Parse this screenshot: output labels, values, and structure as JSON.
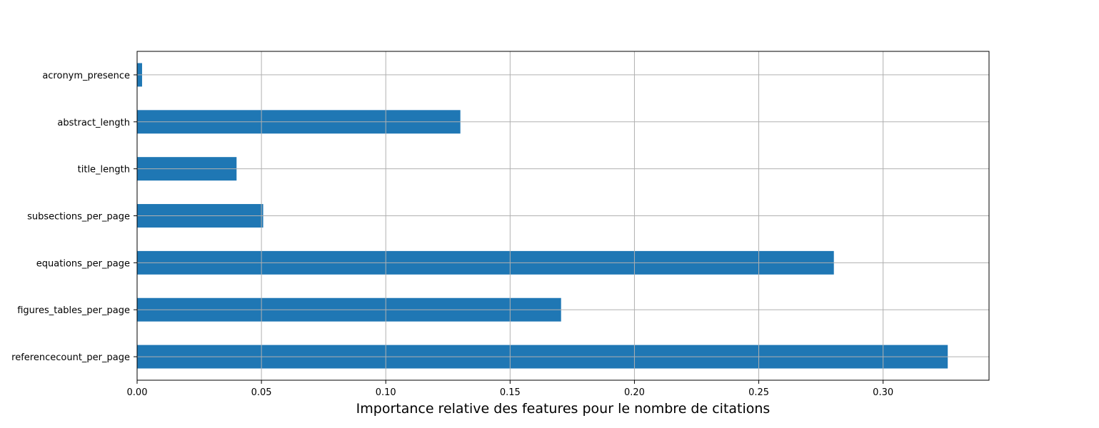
{
  "chart_data": {
    "type": "bar",
    "orientation": "horizontal",
    "categories": [
      "referencecount_per_page",
      "figures_tables_per_page",
      "equations_per_page",
      "subsections_per_page",
      "title_length",
      "abstract_length",
      "acronym_presence"
    ],
    "values": [
      0.326,
      0.1705,
      0.2802,
      0.0507,
      0.04,
      0.13,
      0.002
    ],
    "title": "",
    "xlabel": "Importance relative des features pour le nombre de citations",
    "ylabel": "",
    "xlim": [
      0,
      0.3426
    ],
    "xticks": [
      0.0,
      0.05,
      0.1,
      0.15,
      0.2,
      0.25,
      0.3
    ],
    "xtick_labels": [
      "0.00",
      "0.05",
      "0.10",
      "0.15",
      "0.20",
      "0.25",
      "0.30"
    ],
    "grid": true,
    "legend": "none",
    "colors": {
      "bar": "#1f77b4",
      "grid": "#b0b0b0",
      "axis": "#000000"
    }
  }
}
